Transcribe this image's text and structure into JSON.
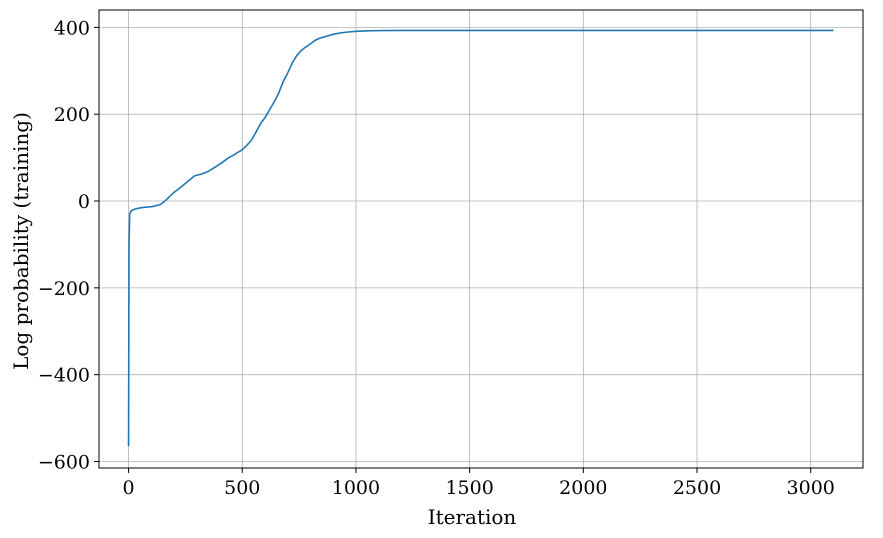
{
  "chart_data": {
    "type": "line",
    "title": "",
    "xlabel": "Iteration",
    "ylabel": "Log probability (training)",
    "xlim": [
      -130,
      3230
    ],
    "ylim": [
      -615,
      440
    ],
    "grid": true,
    "line_color": "#1f77b4",
    "x_ticks": [
      0,
      500,
      1000,
      1500,
      2000,
      2500,
      3000
    ],
    "x_tick_labels": [
      "0",
      "500",
      "1000",
      "1500",
      "2000",
      "2500",
      "3000"
    ],
    "y_ticks": [
      -600,
      -400,
      -200,
      0,
      200,
      400
    ],
    "y_tick_labels": [
      "−600",
      "−400",
      "−200",
      "0",
      "200",
      "400"
    ],
    "series": [
      {
        "x": [
          0,
          2,
          5,
          10,
          20,
          40,
          60,
          80,
          100,
          120,
          140,
          160,
          180,
          200,
          230,
          260,
          290,
          320,
          350,
          380,
          410,
          440,
          460,
          480,
          500,
          520,
          540,
          560,
          580,
          600,
          620,
          640,
          660,
          680,
          700,
          720,
          740,
          760,
          780,
          800,
          820,
          840,
          860,
          880,
          900,
          930,
          960,
          1000,
          1050,
          1100,
          1200,
          1500,
          2000,
          2500,
          3000,
          3100
        ],
        "y": [
          -565,
          -100,
          -30,
          -24,
          -20,
          -17,
          -15,
          -14,
          -13,
          -11,
          -8,
          0,
          10,
          20,
          32,
          45,
          58,
          62,
          68,
          78,
          88,
          100,
          105,
          112,
          118,
          128,
          140,
          158,
          178,
          192,
          210,
          228,
          248,
          275,
          295,
          318,
          335,
          347,
          355,
          362,
          370,
          375,
          378,
          381,
          384,
          387,
          389,
          391,
          392,
          392.5,
          393,
          393,
          393,
          393,
          393,
          393
        ]
      }
    ]
  }
}
